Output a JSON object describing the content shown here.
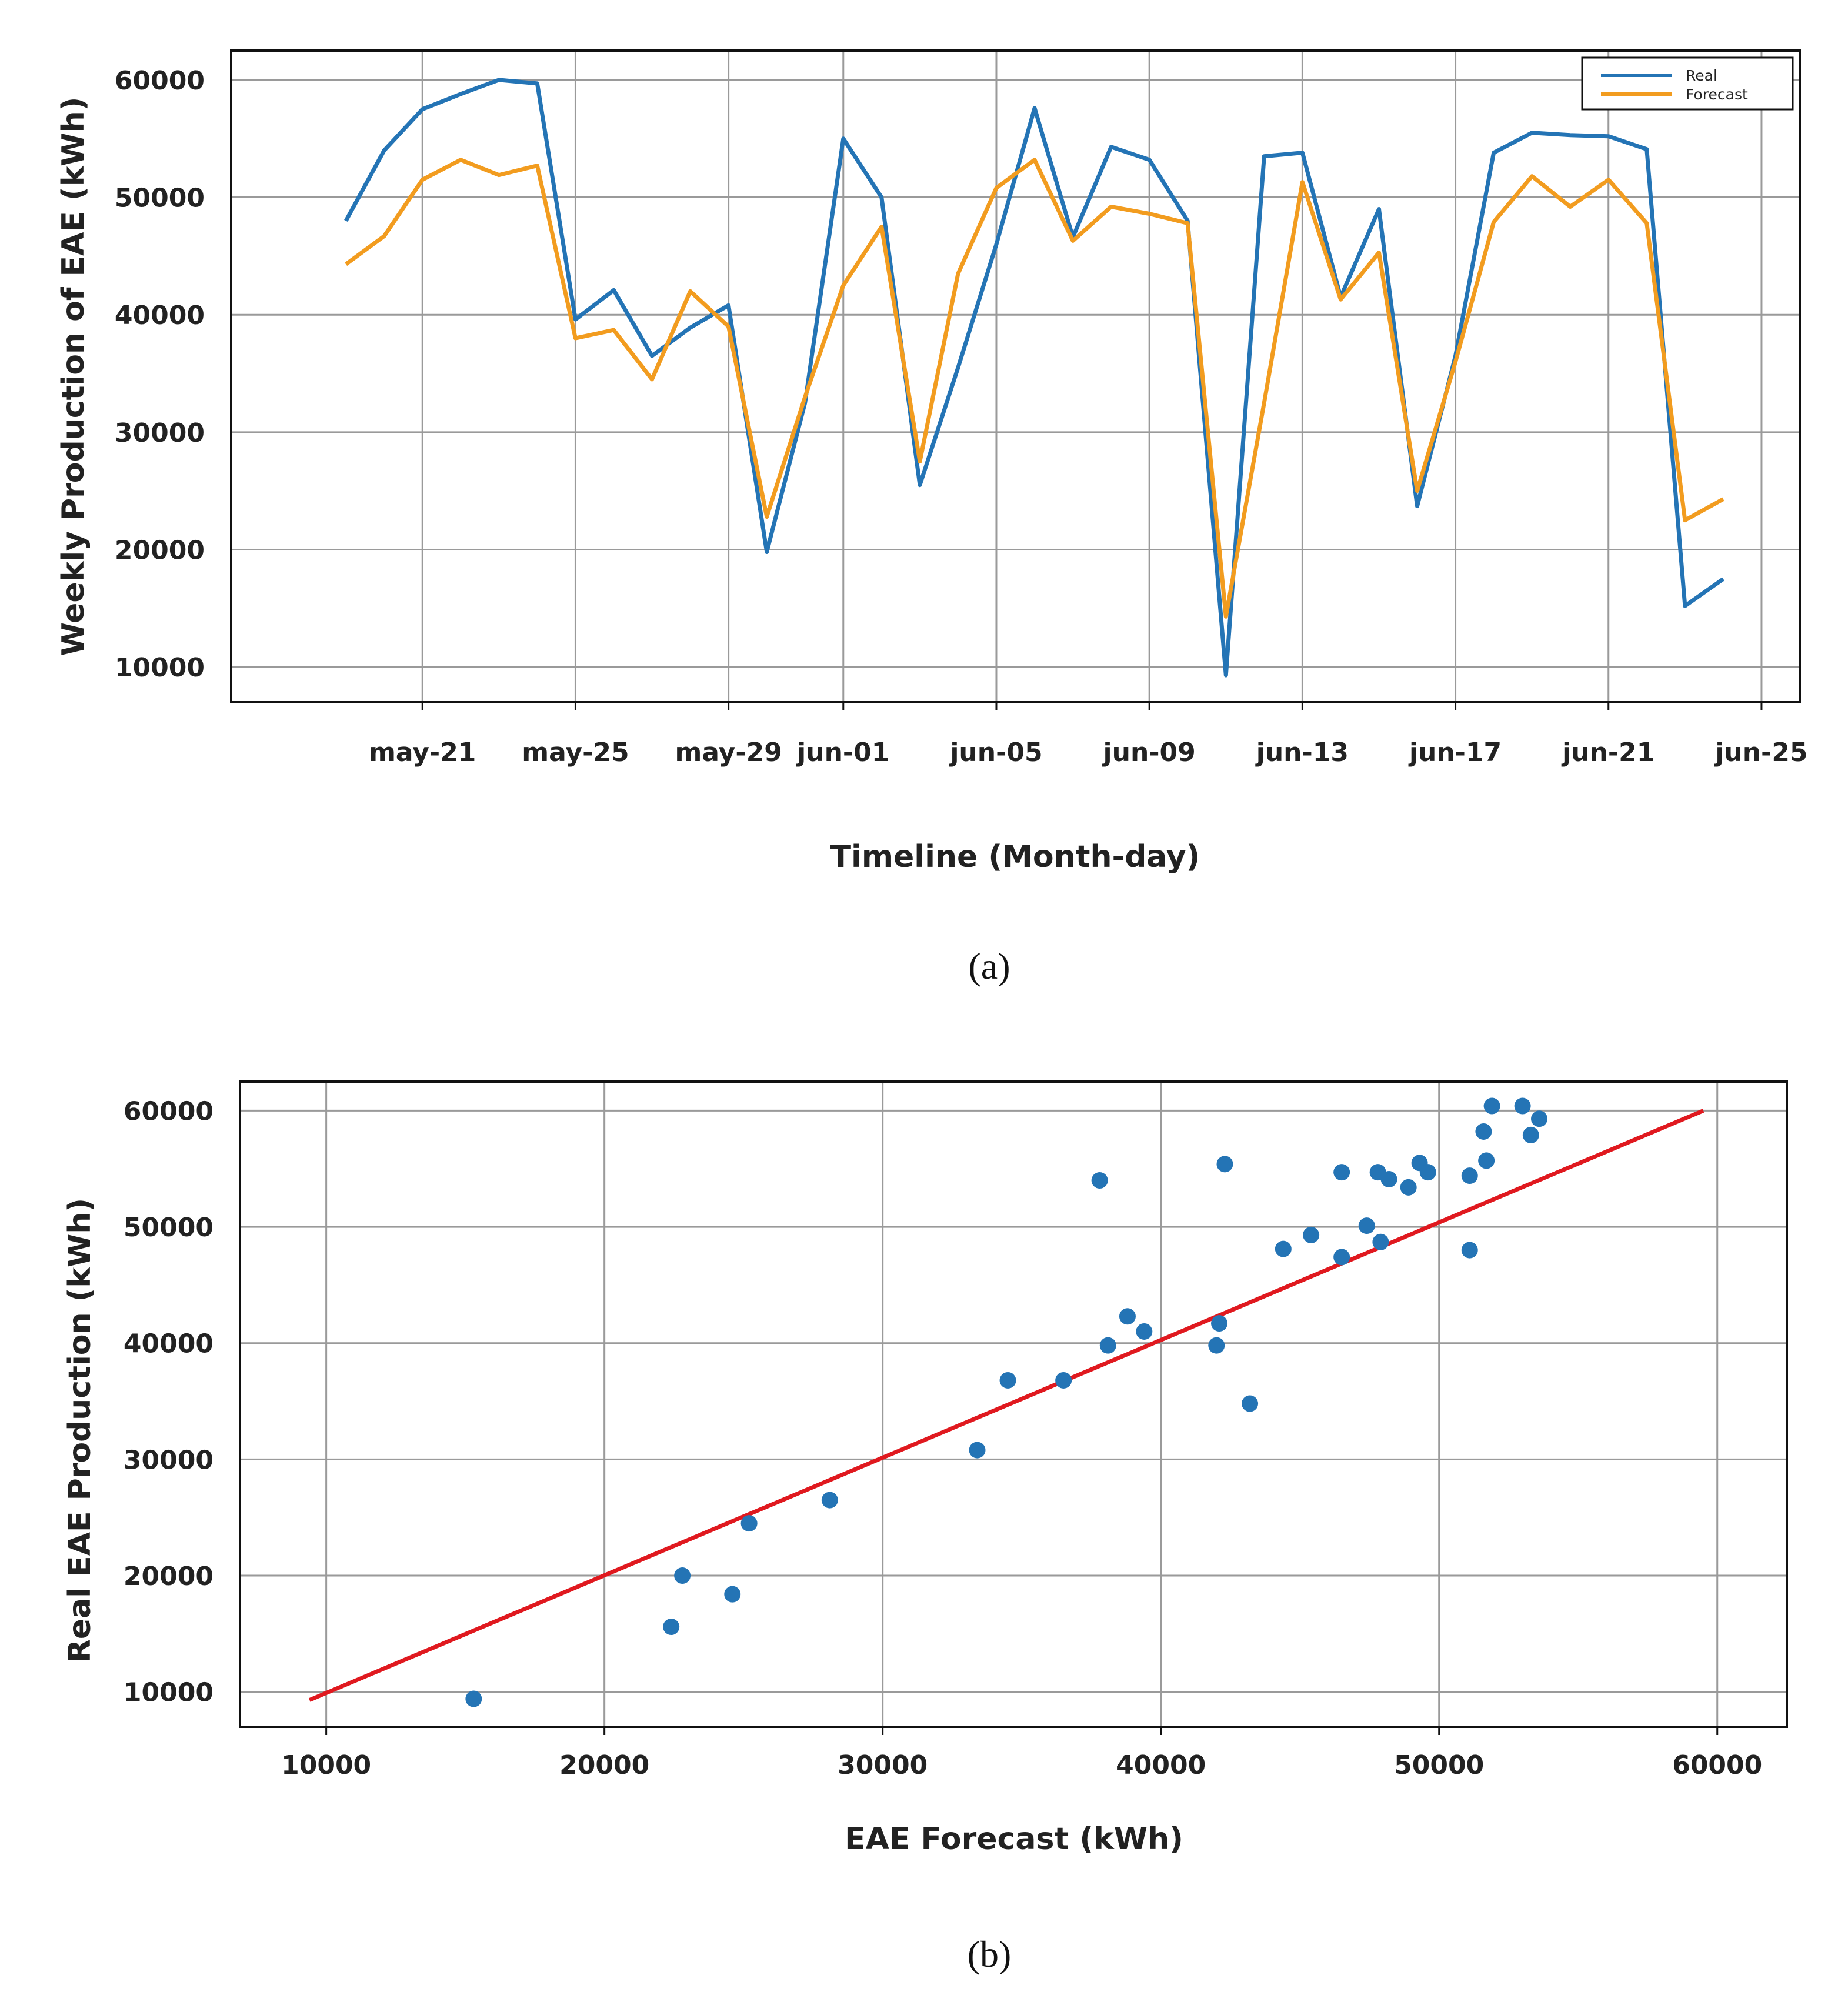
{
  "chart_data": [
    {
      "type": "line",
      "caption": "(a)",
      "xlabel": "Timeline (Month-day)",
      "ylabel": "Weekly Production of EAE (kWh)",
      "x_tick_labels": [
        "may-21",
        "may-25",
        "may-29",
        "jun-01",
        "jun-05",
        "jun-09",
        "jun-13",
        "jun-17",
        "jun-21",
        "jun-25"
      ],
      "x_tick_dates": [
        "2023-05-21",
        "2023-05-25",
        "2023-05-29",
        "2023-06-01",
        "2023-06-05",
        "2023-06-09",
        "2023-06-13",
        "2023-06-17",
        "2023-06-21",
        "2023-06-25"
      ],
      "ylim": [
        7000,
        62500
      ],
      "yticks": [
        10000,
        20000,
        30000,
        40000,
        50000,
        60000
      ],
      "grid": true,
      "legend_position": "top-right",
      "x": [
        "2023-05-19",
        "2023-05-20",
        "2023-05-21",
        "2023-05-22",
        "2023-05-23",
        "2023-05-24",
        "2023-05-25",
        "2023-05-26",
        "2023-05-27",
        "2023-05-28",
        "2023-05-29",
        "2023-05-30",
        "2023-05-31",
        "2023-06-01",
        "2023-06-02",
        "2023-06-03",
        "2023-06-04",
        "2023-06-05",
        "2023-06-06",
        "2023-06-07",
        "2023-06-08",
        "2023-06-09",
        "2023-06-10",
        "2023-06-11",
        "2023-06-12",
        "2023-06-13",
        "2023-06-14",
        "2023-06-15",
        "2023-06-16",
        "2023-06-17",
        "2023-06-18",
        "2023-06-19",
        "2023-06-20",
        "2023-06-21",
        "2023-06-22",
        "2023-06-23",
        "2023-06-24"
      ],
      "series": [
        {
          "name": "Real",
          "color": "#2474b5",
          "values": [
            48000,
            54000,
            57500,
            58800,
            60000,
            59700,
            39600,
            42100,
            36500,
            38900,
            40800,
            19800,
            32500,
            55000,
            50000,
            25500,
            35500,
            46000,
            57600,
            46600,
            54300,
            53200,
            48000,
            9300,
            53500,
            53800,
            41500,
            49000,
            23700,
            36500,
            53800,
            55500,
            55300,
            55200,
            54100,
            15200,
            17500
          ]
        },
        {
          "name": "Forecast",
          "color": "#f29c1f",
          "values": [
            44300,
            46700,
            51500,
            53200,
            51900,
            52700,
            38000,
            38700,
            34500,
            42000,
            39000,
            22800,
            33000,
            42500,
            47500,
            27500,
            43500,
            50800,
            53200,
            46300,
            49200,
            48600,
            47800,
            14300,
            32500,
            51300,
            41300,
            45300,
            25000,
            36000,
            47900,
            51800,
            49200,
            51500,
            47800,
            22500,
            24300
          ]
        }
      ]
    },
    {
      "type": "scatter",
      "caption": "(b)",
      "xlabel": "EAE Forecast (kWh)",
      "ylabel": "Real EAE Production (kWh)",
      "xlim": [
        6900,
        62500
      ],
      "ylim": [
        7000,
        62500
      ],
      "xticks": [
        10000,
        20000,
        30000,
        40000,
        50000,
        60000
      ],
      "yticks": [
        10000,
        20000,
        30000,
        40000,
        50000,
        60000
      ],
      "grid": true,
      "points_color": "#2474b5",
      "reference_line": {
        "color": "#e0191f",
        "x": [
          9400,
          59500
        ],
        "y": [
          9300,
          60000
        ]
      },
      "points": [
        [
          15300,
          9400
        ],
        [
          22400,
          15600
        ],
        [
          22800,
          20000
        ],
        [
          24600,
          18400
        ],
        [
          25200,
          24500
        ],
        [
          28100,
          26500
        ],
        [
          33400,
          30800
        ],
        [
          34500,
          36800
        ],
        [
          36500,
          36800
        ],
        [
          37800,
          54000
        ],
        [
          38100,
          39800
        ],
        [
          38800,
          42300
        ],
        [
          39400,
          41000
        ],
        [
          42000,
          39800
        ],
        [
          42100,
          41700
        ],
        [
          42300,
          55400
        ],
        [
          43200,
          34800
        ],
        [
          44400,
          48100
        ],
        [
          45400,
          49300
        ],
        [
          46500,
          47400
        ],
        [
          46500,
          54700
        ],
        [
          47400,
          50100
        ],
        [
          47800,
          54700
        ],
        [
          47900,
          48700
        ],
        [
          48200,
          54100
        ],
        [
          48900,
          53400
        ],
        [
          49300,
          55500
        ],
        [
          49600,
          54700
        ],
        [
          51100,
          48000
        ],
        [
          51100,
          54400
        ],
        [
          51600,
          58200
        ],
        [
          51700,
          55700
        ],
        [
          51900,
          60400
        ],
        [
          53000,
          60400
        ],
        [
          53300,
          57900
        ],
        [
          53600,
          59300
        ]
      ]
    }
  ]
}
